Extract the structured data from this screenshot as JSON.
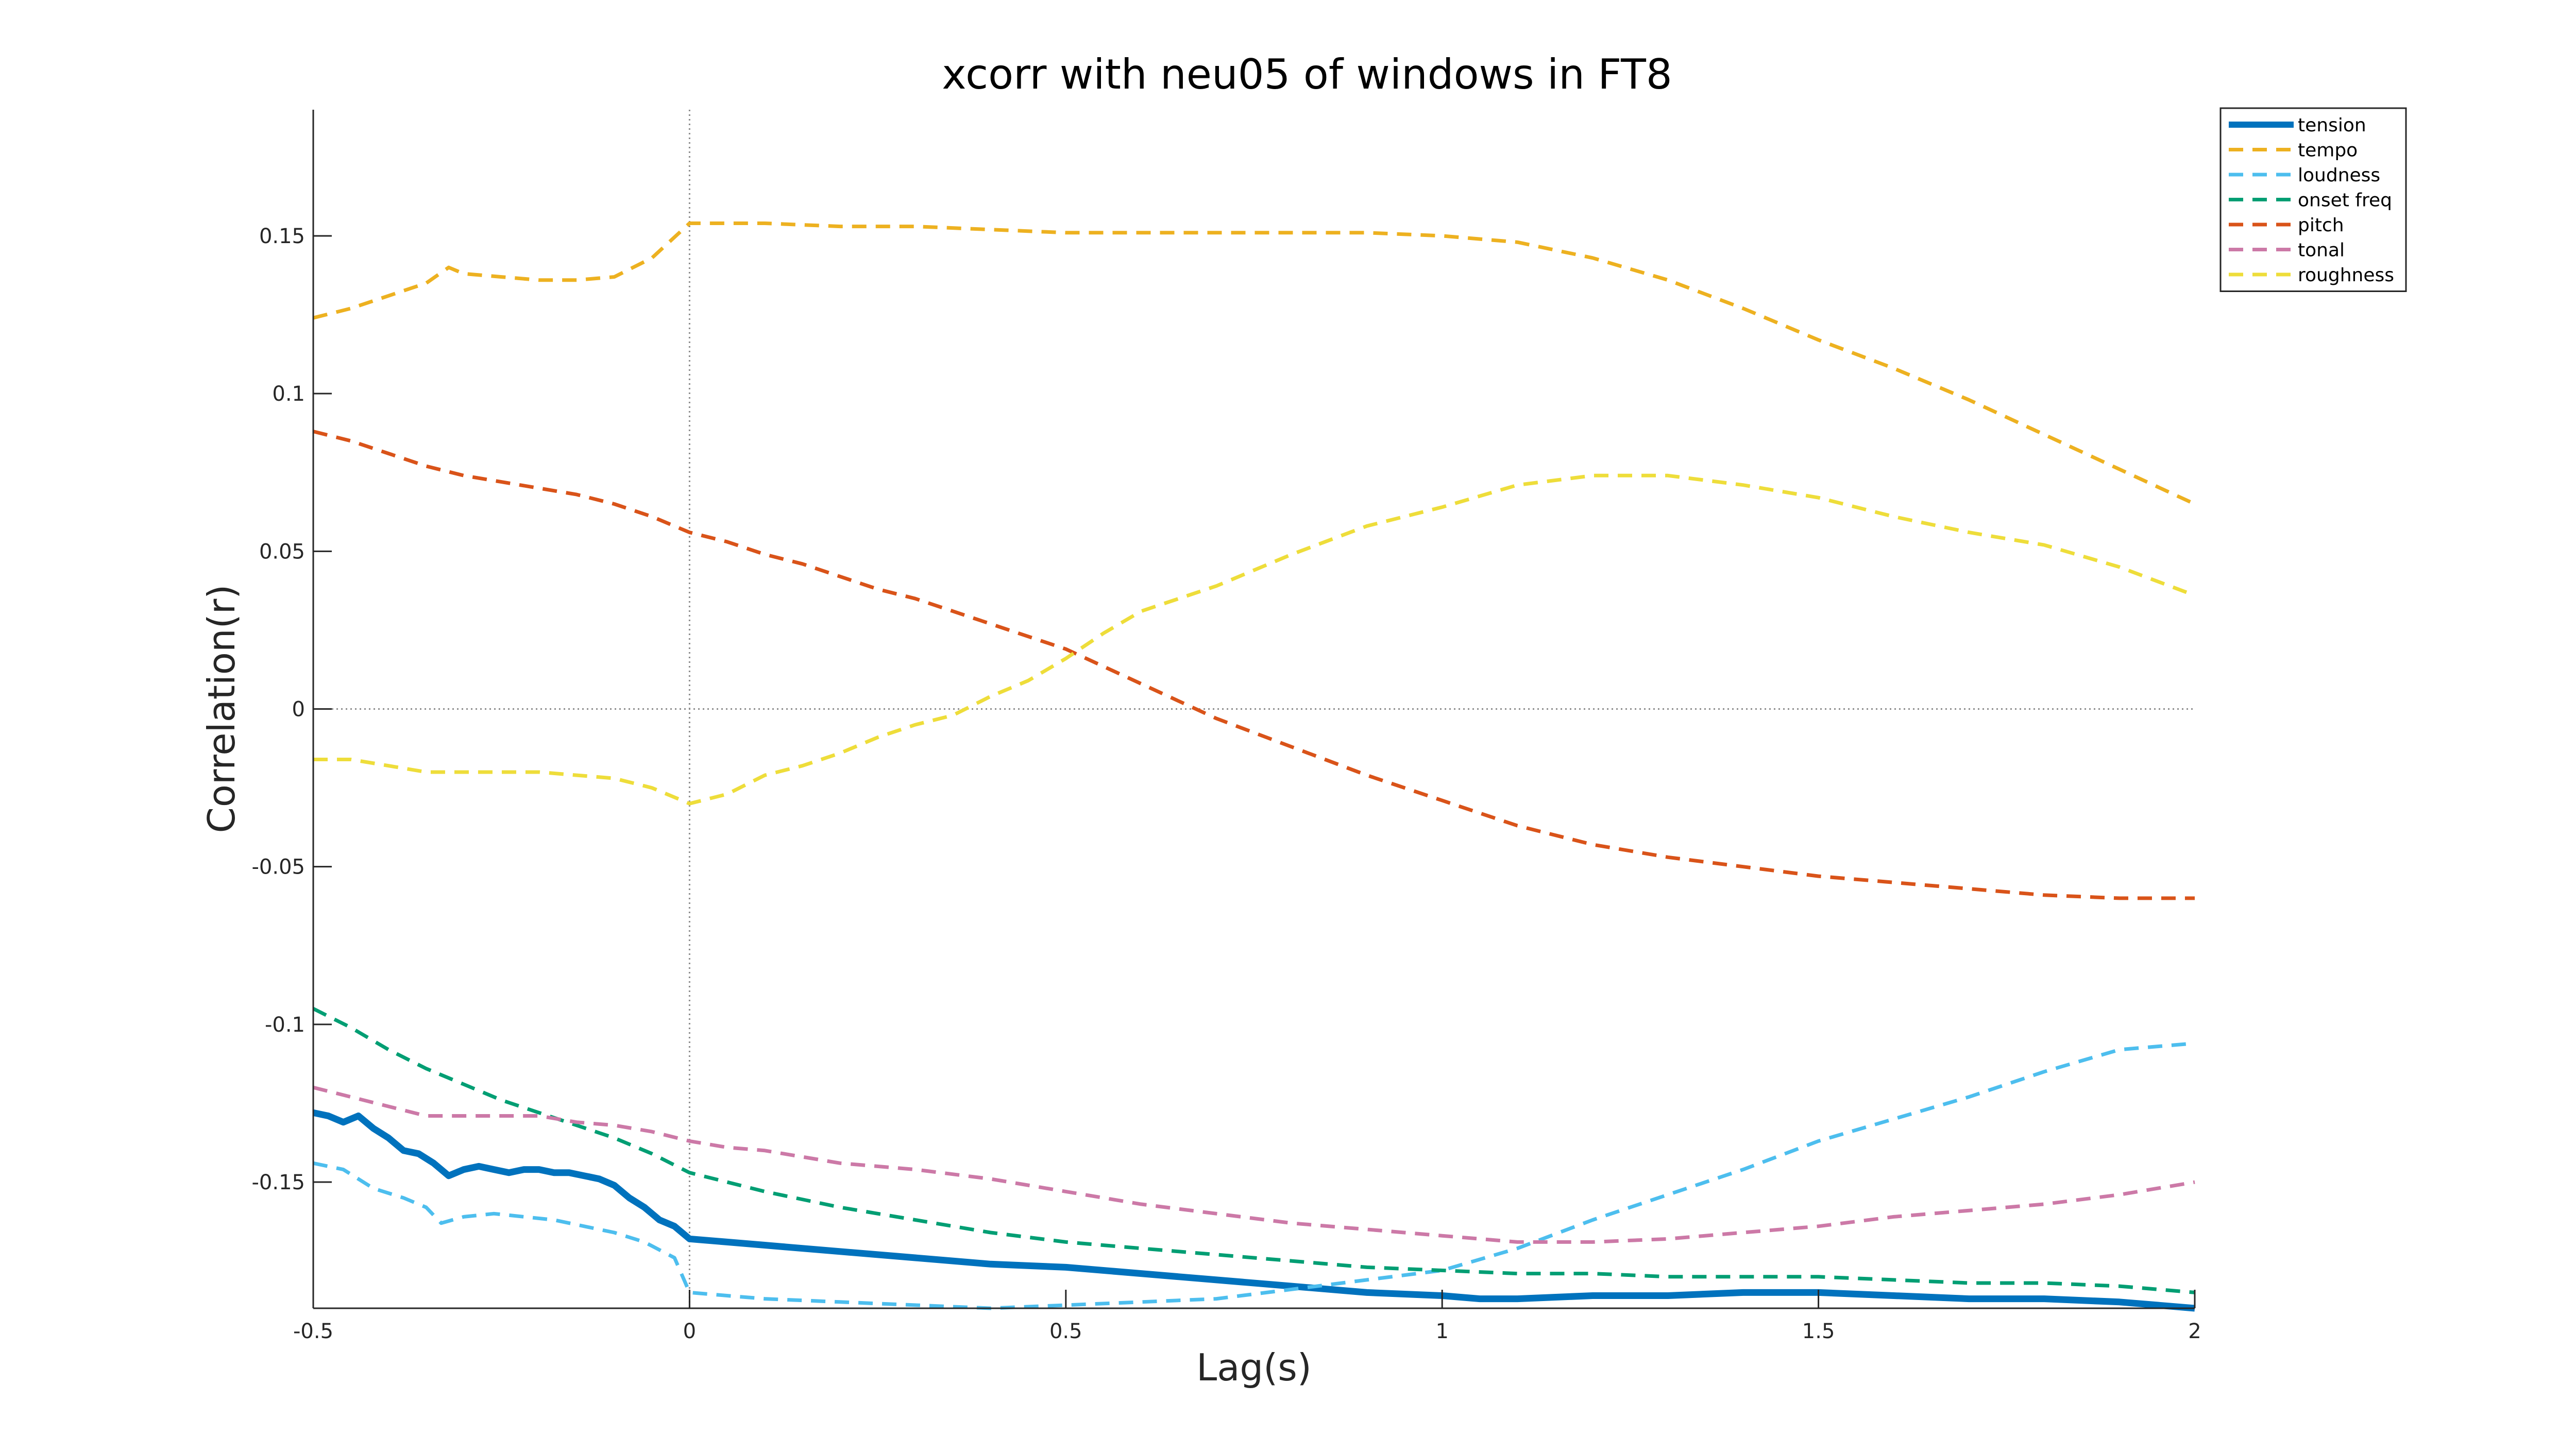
{
  "chart_data": {
    "type": "line",
    "title": "xcorr with neu05 of windows in FT8",
    "xlabel": "Lag(s)",
    "ylabel": "Correlation(r)",
    "xlim": [
      -0.5,
      2
    ],
    "ylim": [
      -0.19,
      0.19
    ],
    "xticks": [
      {
        "value": -0.5,
        "label": "-0.5"
      },
      {
        "value": 0,
        "label": "0"
      },
      {
        "value": 0.5,
        "label": "0.5"
      },
      {
        "value": 1,
        "label": "1"
      },
      {
        "value": 1.5,
        "label": "1.5"
      },
      {
        "value": 2,
        "label": "2"
      }
    ],
    "yticks": [
      {
        "value": -0.15,
        "label": "-0.15"
      },
      {
        "value": -0.1,
        "label": "-0.1"
      },
      {
        "value": -0.05,
        "label": "-0.05"
      },
      {
        "value": 0,
        "label": "0"
      },
      {
        "value": 0.05,
        "label": "0.05"
      },
      {
        "value": 0.1,
        "label": "0.1"
      },
      {
        "value": 0.15,
        "label": "0.15"
      }
    ],
    "grid": false,
    "reference_lines": {
      "x": 0,
      "y": 0
    },
    "legend_position": "top-right",
    "series": [
      {
        "name": "tension",
        "color": "#0072BD",
        "style": "solid",
        "x": [
          -0.5,
          -0.48,
          -0.46,
          -0.44,
          -0.42,
          -0.4,
          -0.38,
          -0.36,
          -0.34,
          -0.32,
          -0.3,
          -0.28,
          -0.26,
          -0.24,
          -0.22,
          -0.2,
          -0.18,
          -0.16,
          -0.14,
          -0.12,
          -0.1,
          -0.08,
          -0.06,
          -0.04,
          -0.02,
          0,
          0.05,
          0.1,
          0.15,
          0.2,
          0.3,
          0.4,
          0.5,
          0.6,
          0.7,
          0.8,
          0.9,
          1.0,
          1.05,
          1.1,
          1.2,
          1.3,
          1.4,
          1.5,
          1.6,
          1.7,
          1.8,
          1.9,
          1.95,
          2.0
        ],
        "y": [
          -0.128,
          -0.129,
          -0.131,
          -0.129,
          -0.133,
          -0.136,
          -0.14,
          -0.141,
          -0.144,
          -0.148,
          -0.146,
          -0.145,
          -0.146,
          -0.147,
          -0.146,
          -0.146,
          -0.147,
          -0.147,
          -0.148,
          -0.149,
          -0.151,
          -0.155,
          -0.158,
          -0.162,
          -0.164,
          -0.168,
          -0.169,
          -0.17,
          -0.171,
          -0.172,
          -0.174,
          -0.176,
          -0.177,
          -0.179,
          -0.181,
          -0.183,
          -0.185,
          -0.186,
          -0.187,
          -0.187,
          -0.186,
          -0.186,
          -0.185,
          -0.185,
          -0.186,
          -0.187,
          -0.187,
          -0.188,
          -0.189,
          -0.19
        ]
      },
      {
        "name": "tempo",
        "color": "#EDB120",
        "style": "dashed",
        "x": [
          -0.5,
          -0.45,
          -0.4,
          -0.35,
          -0.32,
          -0.3,
          -0.25,
          -0.2,
          -0.15,
          -0.1,
          -0.05,
          0,
          0.05,
          0.1,
          0.2,
          0.3,
          0.4,
          0.5,
          0.6,
          0.7,
          0.8,
          0.9,
          1.0,
          1.1,
          1.2,
          1.3,
          1.4,
          1.5,
          1.6,
          1.7,
          1.8,
          1.9,
          2.0
        ],
        "y": [
          0.124,
          0.127,
          0.131,
          0.135,
          0.14,
          0.138,
          0.137,
          0.136,
          0.136,
          0.137,
          0.143,
          0.154,
          0.154,
          0.154,
          0.153,
          0.153,
          0.152,
          0.151,
          0.151,
          0.151,
          0.151,
          0.151,
          0.15,
          0.148,
          0.143,
          0.136,
          0.127,
          0.117,
          0.108,
          0.098,
          0.087,
          0.076,
          0.065
        ]
      },
      {
        "name": "loudness",
        "color": "#4DBEEE",
        "style": "dashed",
        "x": [
          -0.5,
          -0.46,
          -0.42,
          -0.38,
          -0.35,
          -0.33,
          -0.3,
          -0.26,
          -0.22,
          -0.18,
          -0.14,
          -0.1,
          -0.06,
          -0.02,
          0,
          0.1,
          0.2,
          0.3,
          0.4,
          0.5,
          0.6,
          0.7,
          0.8,
          0.9,
          1.0,
          1.1,
          1.2,
          1.3,
          1.4,
          1.5,
          1.6,
          1.7,
          1.8,
          1.9,
          2.0
        ],
        "y": [
          -0.144,
          -0.146,
          -0.152,
          -0.155,
          -0.158,
          -0.163,
          -0.161,
          -0.16,
          -0.161,
          -0.162,
          -0.164,
          -0.166,
          -0.169,
          -0.174,
          -0.185,
          -0.187,
          -0.188,
          -0.189,
          -0.19,
          -0.189,
          -0.188,
          -0.187,
          -0.184,
          -0.181,
          -0.178,
          -0.171,
          -0.162,
          -0.154,
          -0.146,
          -0.137,
          -0.13,
          -0.123,
          -0.115,
          -0.108,
          -0.106
        ]
      },
      {
        "name": "onset freq",
        "color": "#009E73",
        "style": "dashed",
        "x": [
          -0.5,
          -0.45,
          -0.4,
          -0.35,
          -0.3,
          -0.25,
          -0.2,
          -0.15,
          -0.1,
          -0.05,
          0,
          0.1,
          0.2,
          0.3,
          0.4,
          0.5,
          0.6,
          0.7,
          0.8,
          0.9,
          1.0,
          1.1,
          1.2,
          1.3,
          1.4,
          1.5,
          1.6,
          1.7,
          1.8,
          1.9,
          2.0
        ],
        "y": [
          -0.095,
          -0.101,
          -0.108,
          -0.114,
          -0.119,
          -0.124,
          -0.128,
          -0.132,
          -0.136,
          -0.141,
          -0.147,
          -0.153,
          -0.158,
          -0.162,
          -0.166,
          -0.169,
          -0.171,
          -0.173,
          -0.175,
          -0.177,
          -0.178,
          -0.179,
          -0.179,
          -0.18,
          -0.18,
          -0.18,
          -0.181,
          -0.182,
          -0.182,
          -0.183,
          -0.185
        ]
      },
      {
        "name": "pitch",
        "color": "#D95319",
        "style": "dashed",
        "x": [
          -0.5,
          -0.45,
          -0.4,
          -0.35,
          -0.3,
          -0.25,
          -0.2,
          -0.15,
          -0.1,
          -0.05,
          0,
          0.05,
          0.1,
          0.15,
          0.2,
          0.25,
          0.3,
          0.35,
          0.4,
          0.5,
          0.6,
          0.7,
          0.8,
          0.9,
          1.0,
          1.1,
          1.2,
          1.3,
          1.4,
          1.5,
          1.6,
          1.7,
          1.8,
          1.9,
          2.0
        ],
        "y": [
          0.088,
          0.085,
          0.081,
          0.077,
          0.074,
          0.072,
          0.07,
          0.068,
          0.065,
          0.061,
          0.056,
          0.053,
          0.049,
          0.046,
          0.042,
          0.038,
          0.035,
          0.031,
          0.027,
          0.019,
          0.008,
          -0.003,
          -0.012,
          -0.021,
          -0.029,
          -0.037,
          -0.043,
          -0.047,
          -0.05,
          -0.053,
          -0.055,
          -0.057,
          -0.059,
          -0.06,
          -0.06
        ]
      },
      {
        "name": "tonal",
        "color": "#CC79A7",
        "style": "dashed",
        "x": [
          -0.5,
          -0.45,
          -0.4,
          -0.35,
          -0.3,
          -0.25,
          -0.2,
          -0.15,
          -0.1,
          -0.05,
          0,
          0.05,
          0.1,
          0.2,
          0.3,
          0.4,
          0.5,
          0.6,
          0.7,
          0.8,
          0.9,
          1.0,
          1.1,
          1.2,
          1.3,
          1.4,
          1.5,
          1.6,
          1.7,
          1.8,
          1.9,
          2.0
        ],
        "y": [
          -0.12,
          -0.123,
          -0.126,
          -0.129,
          -0.129,
          -0.129,
          -0.129,
          -0.131,
          -0.132,
          -0.134,
          -0.137,
          -0.139,
          -0.14,
          -0.144,
          -0.146,
          -0.149,
          -0.153,
          -0.157,
          -0.16,
          -0.163,
          -0.165,
          -0.167,
          -0.169,
          -0.169,
          -0.168,
          -0.166,
          -0.164,
          -0.161,
          -0.159,
          -0.157,
          -0.154,
          -0.15
        ]
      },
      {
        "name": "roughness",
        "color": "#EEDD3A",
        "style": "dashed",
        "x": [
          -0.5,
          -0.45,
          -0.4,
          -0.35,
          -0.3,
          -0.25,
          -0.2,
          -0.15,
          -0.1,
          -0.05,
          0,
          0.05,
          0.1,
          0.15,
          0.2,
          0.25,
          0.3,
          0.35,
          0.4,
          0.45,
          0.5,
          0.55,
          0.6,
          0.65,
          0.7,
          0.8,
          0.9,
          1.0,
          1.1,
          1.2,
          1.3,
          1.4,
          1.5,
          1.6,
          1.7,
          1.8,
          1.9,
          2.0
        ],
        "y": [
          -0.016,
          -0.016,
          -0.018,
          -0.02,
          -0.02,
          -0.02,
          -0.02,
          -0.021,
          -0.022,
          -0.025,
          -0.03,
          -0.027,
          -0.021,
          -0.018,
          -0.014,
          -0.009,
          -0.005,
          -0.002,
          0.004,
          0.009,
          0.016,
          0.024,
          0.031,
          0.035,
          0.039,
          0.049,
          0.058,
          0.064,
          0.071,
          0.074,
          0.074,
          0.071,
          0.067,
          0.061,
          0.056,
          0.052,
          0.045,
          0.036
        ]
      }
    ]
  }
}
